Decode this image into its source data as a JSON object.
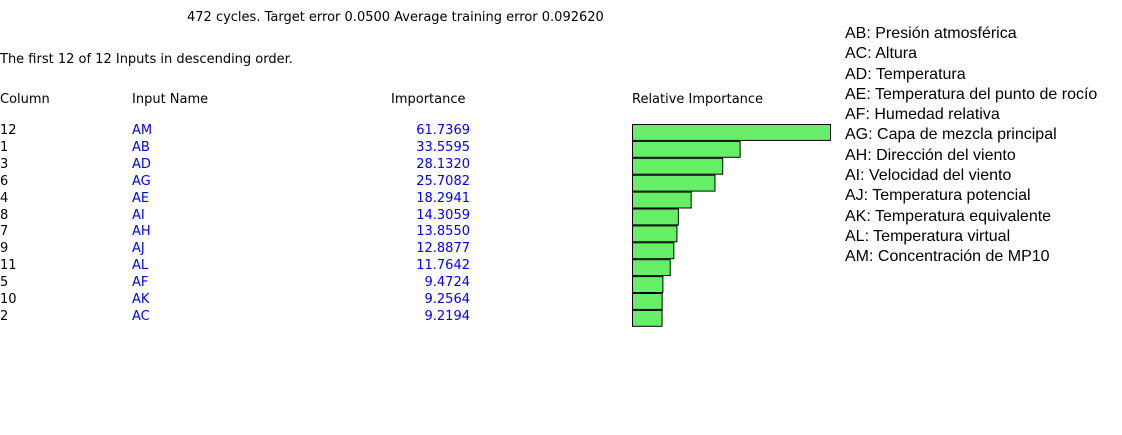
{
  "header": {
    "status": "472 cycles.  Target error 0.0500  Average training error 0.092620",
    "subtitle": "The first 12 of 12 Inputs in descending order."
  },
  "table": {
    "columns": [
      "Column",
      "Input Name",
      "Importance",
      "Relative Importance"
    ],
    "rows": [
      {
        "column": 12,
        "name": "AM",
        "importance": 61.7369
      },
      {
        "column": 1,
        "name": "AB",
        "importance": 33.5595
      },
      {
        "column": 3,
        "name": "AD",
        "importance": 28.132,
        "importance_label": "28.1320"
      },
      {
        "column": 6,
        "name": "AG",
        "importance": 25.7082
      },
      {
        "column": 4,
        "name": "AE",
        "importance": 18.2941
      },
      {
        "column": 8,
        "name": "AI",
        "importance": 14.3059
      },
      {
        "column": 7,
        "name": "AH",
        "importance": 13.855,
        "importance_label": "13.8550"
      },
      {
        "column": 9,
        "name": "AJ",
        "importance": 12.8877
      },
      {
        "column": 11,
        "name": "AL",
        "importance": 11.7642
      },
      {
        "column": 5,
        "name": "AF",
        "importance": 9.4724
      },
      {
        "column": 10,
        "name": "AK",
        "importance": 9.2564
      },
      {
        "column": 2,
        "name": "AC",
        "importance": 9.2194
      }
    ],
    "bar_color": "#66ee66"
  },
  "legend": [
    "AB: Presión atmosférica",
    "AC: Altura",
    "AD: Temperatura",
    "AE: Temperatura del punto de rocío",
    "AF: Humedad relativa",
    "AG: Capa de mezcla principal",
    "AH: Dirección del viento",
    "AI: Velocidad del viento",
    "AJ: Temperatura potencial",
    "AK: Temperatura equivalente",
    "AL: Temperatura virtual",
    "AM: Concentración de MP10"
  ]
}
